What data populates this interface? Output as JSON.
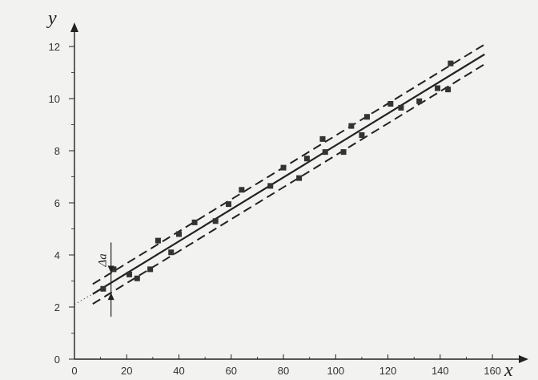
{
  "chart_data": {
    "type": "scatter",
    "title": "",
    "xlabel": "x",
    "ylabel": "y",
    "xlim": [
      0,
      170
    ],
    "ylim": [
      0,
      13
    ],
    "xticks": [
      0,
      20,
      40,
      60,
      80,
      100,
      120,
      140,
      160
    ],
    "yticks": [
      0,
      2,
      4,
      6,
      8,
      10,
      12
    ],
    "grid": false,
    "legend": "none",
    "colors": {
      "background": "#f2f2f0",
      "ink": "#222222",
      "points": "#333333"
    },
    "points": [
      {
        "x": 11,
        "y": 2.7
      },
      {
        "x": 15,
        "y": 3.45
      },
      {
        "x": 21,
        "y": 3.25
      },
      {
        "x": 24,
        "y": 3.1
      },
      {
        "x": 29,
        "y": 3.45
      },
      {
        "x": 32,
        "y": 4.55
      },
      {
        "x": 37,
        "y": 4.1
      },
      {
        "x": 40,
        "y": 4.8
      },
      {
        "x": 46,
        "y": 5.25
      },
      {
        "x": 54,
        "y": 5.3
      },
      {
        "x": 59,
        "y": 5.95
      },
      {
        "x": 64,
        "y": 6.5
      },
      {
        "x": 75,
        "y": 6.65
      },
      {
        "x": 80,
        "y": 7.35
      },
      {
        "x": 86,
        "y": 6.95
      },
      {
        "x": 89,
        "y": 7.7
      },
      {
        "x": 95,
        "y": 8.45
      },
      {
        "x": 96,
        "y": 7.95
      },
      {
        "x": 103,
        "y": 7.95
      },
      {
        "x": 106,
        "y": 8.95
      },
      {
        "x": 110,
        "y": 8.6
      },
      {
        "x": 112,
        "y": 9.3
      },
      {
        "x": 121,
        "y": 9.8
      },
      {
        "x": 125,
        "y": 9.65
      },
      {
        "x": 132,
        "y": 9.9
      },
      {
        "x": 139,
        "y": 10.4
      },
      {
        "x": 143,
        "y": 10.35
      },
      {
        "x": 144,
        "y": 11.35
      }
    ],
    "fit_line": {
      "x_start": 7,
      "x_end": 157,
      "y_at_start": 2.5,
      "y_at_end": 11.7
    },
    "extrapolation": {
      "x_start": 0,
      "x_end": 7,
      "y_at_start": 2.1,
      "y_at_end": 2.5
    },
    "band_offset": 0.38,
    "delta_marker": {
      "x": 14,
      "label": "Δa"
    }
  }
}
